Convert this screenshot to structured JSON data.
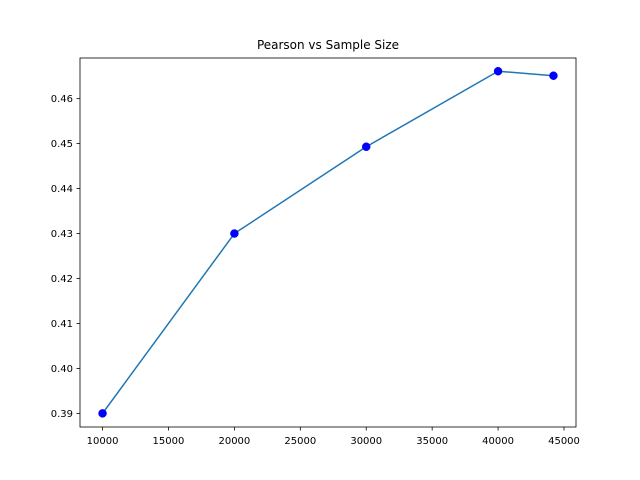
{
  "chart_data": {
    "type": "line",
    "title": "Pearson vs Sample Size",
    "xlabel": "",
    "ylabel": "",
    "x": [
      10000,
      20000,
      30000,
      40000,
      44200
    ],
    "series": [
      {
        "values": [
          0.39,
          0.43,
          0.4493,
          0.4661,
          0.4651
        ],
        "line_color": "#1f77b4",
        "marker_color": "#0000ff"
      }
    ],
    "xlim": [
      8290,
      45910
    ],
    "ylim": [
      0.38697,
      0.46904
    ],
    "xticks": [
      10000,
      15000,
      20000,
      25000,
      30000,
      35000,
      40000,
      45000
    ],
    "xtick_labels": [
      "10000",
      "15000",
      "20000",
      "25000",
      "30000",
      "35000",
      "40000",
      "45000"
    ],
    "yticks": [
      0.39,
      0.4,
      0.41,
      0.42,
      0.43,
      0.44,
      0.45,
      0.46
    ],
    "ytick_labels": [
      "0.39",
      "0.40",
      "0.41",
      "0.42",
      "0.43",
      "0.44",
      "0.45",
      "0.46"
    ],
    "grid": false,
    "legend": "none"
  }
}
